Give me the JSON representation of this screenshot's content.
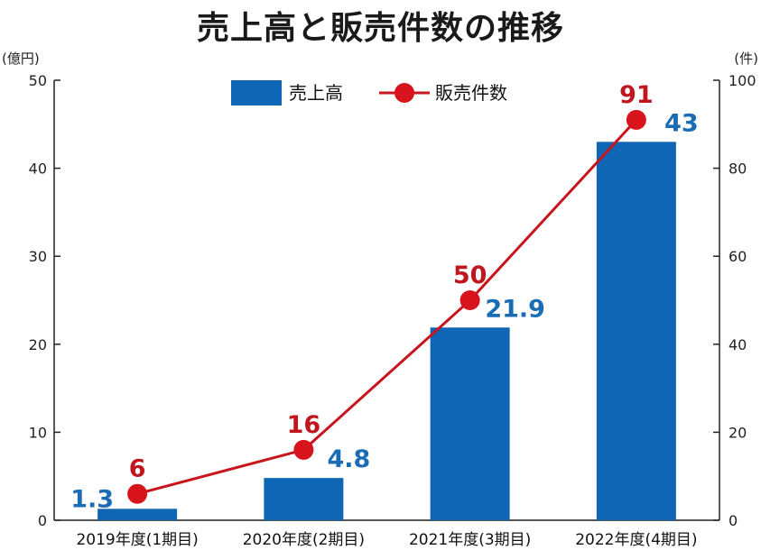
{
  "chart_data": {
    "type": "bar+line",
    "title": "売上高と販売件数の推移",
    "categories": [
      "2019年度(1期目)",
      "2020年度(2期目)",
      "2021年度(3期目)",
      "2022年度(4期目)"
    ],
    "series": [
      {
        "name": "売上高",
        "type": "bar",
        "axis": "left",
        "values": [
          1.3,
          4.8,
          21.9,
          43
        ],
        "labels": [
          "1.3",
          "4.8",
          "21.9",
          "43"
        ]
      },
      {
        "name": "販売件数",
        "type": "line",
        "axis": "right",
        "values": [
          6,
          16,
          50,
          91
        ],
        "labels": [
          "6",
          "16",
          "50",
          "91"
        ]
      }
    ],
    "y_left": {
      "unit": "(億円)",
      "ylim": [
        0,
        50
      ],
      "ticks": [
        "0",
        "10",
        "20",
        "30",
        "40",
        "50"
      ]
    },
    "y_right": {
      "unit": "(件)",
      "ylim": [
        0,
        100
      ],
      "ticks": [
        "0",
        "20",
        "40",
        "60",
        "80",
        "100"
      ]
    },
    "legend_position": "top-center",
    "grid": false,
    "colors": {
      "bar": "#0f66b5",
      "line": "#c8141c",
      "marker": "#d7141c",
      "bar_label": "#1a6cb4",
      "line_label": "#c0161d"
    }
  }
}
